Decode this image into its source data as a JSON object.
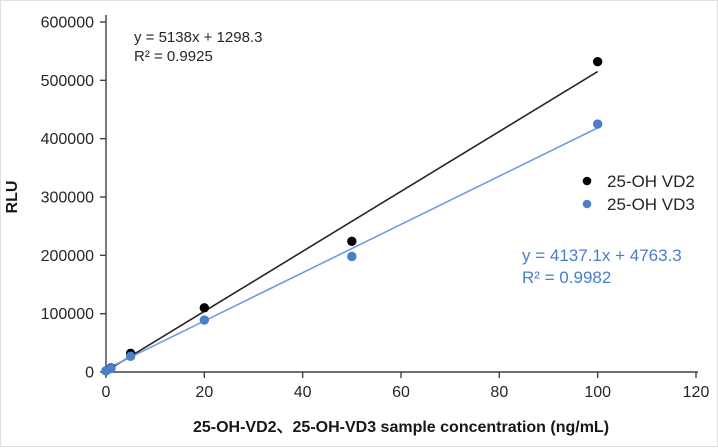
{
  "figure": {
    "background": "#ffffff",
    "axis_color": "#404040",
    "tick_text_color": "#262626"
  },
  "chart_data": {
    "type": "scatter",
    "title": "",
    "xlabel": "25-OH-VD2、25-OH-VD3 sample concentration (ng/mL)",
    "ylabel": "RLU",
    "xlim": [
      0,
      120
    ],
    "ylim": [
      0,
      600000
    ],
    "xticks": [
      0,
      20,
      40,
      60,
      80,
      100,
      120
    ],
    "yticks": [
      0,
      100000,
      200000,
      300000,
      400000,
      500000,
      600000
    ],
    "grid": false,
    "legend_position": "right-middle",
    "series": [
      {
        "name": "25-OH VD2",
        "color": "#000000",
        "line_color": "#262626",
        "marker": "circle",
        "x": [
          0,
          1,
          5,
          20,
          50,
          100
        ],
        "y": [
          2000,
          7000,
          32000,
          110000,
          224000,
          532000
        ],
        "trendline": {
          "slope": 5138,
          "intercept": 1298.3,
          "x_start": 0,
          "x_end": 100
        },
        "equation": "y = 5138x + 1298.3",
        "r_squared": "R² = 0.9925"
      },
      {
        "name": "25-OH VD3",
        "color": "#4a7ec9",
        "line_color": "#6f9ce0",
        "marker": "circle",
        "x": [
          0,
          1,
          5,
          20,
          50,
          100
        ],
        "y": [
          2000,
          6000,
          27000,
          89000,
          198000,
          425000
        ],
        "trendline": {
          "slope": 4137.1,
          "intercept": 4763.3,
          "x_start": 0,
          "x_end": 100
        },
        "equation": "y = 4137.1x + 4763.3",
        "r_squared": "R² = 0.9982"
      }
    ]
  }
}
